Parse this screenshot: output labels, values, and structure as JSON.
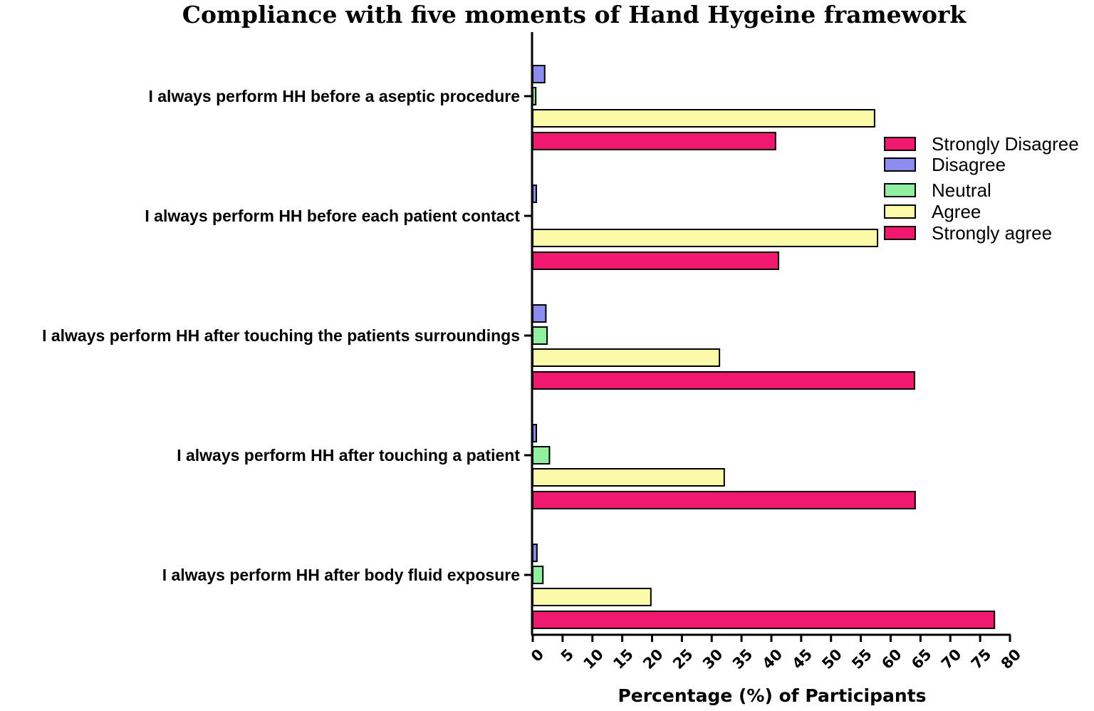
{
  "chart_data": {
    "type": "bar",
    "orientation": "horizontal",
    "title": "Compliance with five moments of Hand Hygeine framework",
    "xlabel": "Percentage (%) of Participants",
    "ylabel": "",
    "xlim": [
      0,
      80
    ],
    "xticks": [
      "0",
      "5",
      "10",
      "15",
      "20",
      "25",
      "30",
      "35",
      "40",
      "45",
      "50",
      "55",
      "60",
      "65",
      "70",
      "75",
      "80"
    ],
    "grid": false,
    "legend_position": "right",
    "categories": [
      "I always perform HH before a aseptic procedure",
      "I always perform HH before each patient contact",
      "I always perform HH after touching the patients surroundings",
      "I always perform HH after touching a patient",
      "I always perform HH after body fluid exposure"
    ],
    "series": [
      {
        "name": "Strongly Disagree",
        "color": "#F0186F",
        "values": [
          0,
          0,
          0,
          0,
          0
        ]
      },
      {
        "name": "Disagree",
        "color": "#8C8CF0",
        "values": [
          2.0,
          0.6,
          2.2,
          0.6,
          0.7
        ]
      },
      {
        "name": "Neutral",
        "color": "#90F0A0",
        "values": [
          0.5,
          0,
          2.4,
          2.8,
          1.7
        ]
      },
      {
        "name": "Agree",
        "color": "#FAFAA8",
        "values": [
          57.3,
          57.8,
          31.3,
          32.1,
          19.8
        ]
      },
      {
        "name": "Strongly agree",
        "color": "#F0186F",
        "values": [
          40.7,
          41.2,
          64.0,
          64.1,
          77.4
        ]
      }
    ]
  }
}
